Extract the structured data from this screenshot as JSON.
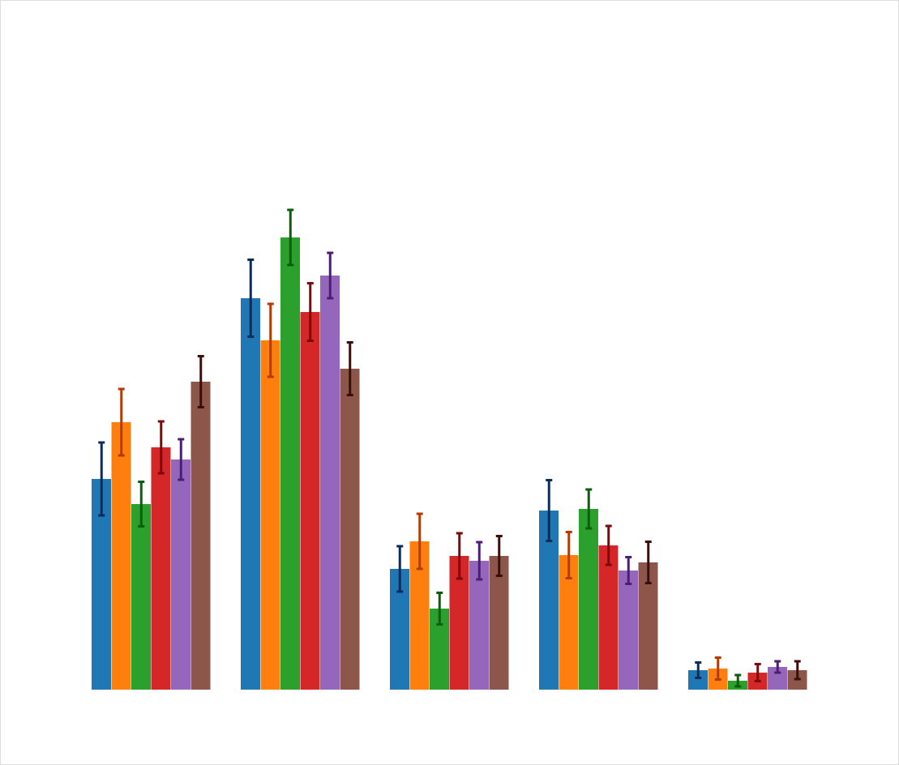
{
  "chart_data": {
    "type": "bar",
    "categories": [
      null,
      null,
      null,
      null,
      null
    ],
    "ylim": [
      0,
      85.1
    ],
    "series": [
      {
        "color": "#1f77b4",
        "error_color": "#0b2d5c",
        "values": [
          26.0,
          48.3,
          14.9,
          22.1,
          2.4
        ],
        "errors": [
          4.5,
          4.75,
          2.8,
          3.75,
          0.95
        ]
      },
      {
        "color": "#ff7f0e",
        "error_color": "#b33c05",
        "values": [
          33.0,
          43.1,
          18.3,
          16.6,
          2.6
        ],
        "errors": [
          4.1,
          4.5,
          3.4,
          2.85,
          1.35
        ]
      },
      {
        "color": "#2ca02c",
        "error_color": "#0b5e0b",
        "values": [
          22.9,
          55.8,
          10.0,
          22.3,
          1.1
        ],
        "errors": [
          2.75,
          3.4,
          1.95,
          2.4,
          0.7
        ]
      },
      {
        "color": "#d62728",
        "error_color": "#7a0a0c",
        "values": [
          29.9,
          46.6,
          16.5,
          17.8,
          2.1
        ],
        "errors": [
          3.2,
          3.55,
          2.8,
          2.4,
          1.05
        ]
      },
      {
        "color": "#9467bd",
        "error_color": "#4a1f73",
        "values": [
          28.4,
          51.1,
          15.9,
          14.7,
          2.8
        ],
        "errors": [
          2.5,
          2.8,
          2.3,
          1.65,
          0.7
        ]
      },
      {
        "color": "#8c564b",
        "error_color": "#3a0f0a",
        "values": [
          38.0,
          39.6,
          16.5,
          15.7,
          2.4
        ],
        "errors": [
          3.15,
          3.25,
          2.45,
          2.55,
          1.1
        ]
      }
    ]
  }
}
